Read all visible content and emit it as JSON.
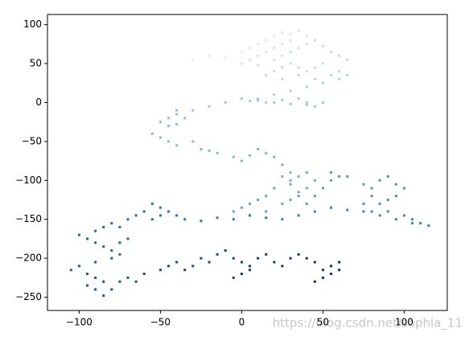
{
  "chart_data": {
    "type": "scatter",
    "colormap": "Blues",
    "xlim": [
      -119.5,
      126.5
    ],
    "ylim": [
      -267,
      113
    ],
    "xticks": [
      {
        "value": -100,
        "label": "−100"
      },
      {
        "value": -50,
        "label": "−50"
      },
      0,
      50,
      100
    ],
    "yticks": [
      100,
      50,
      0,
      {
        "value": -50,
        "label": "−50"
      },
      {
        "value": -100,
        "label": "−100"
      },
      {
        "value": -150,
        "label": "−150"
      },
      {
        "value": -200,
        "label": "−200"
      },
      {
        "value": -250,
        "label": "−250"
      }
    ],
    "watermark": "https://blog.csdn.net/sophia_11",
    "points": [
      [
        -30,
        55
      ],
      [
        -20,
        60
      ],
      [
        -10,
        58
      ],
      [
        0,
        65
      ],
      [
        5,
        70
      ],
      [
        10,
        75
      ],
      [
        15,
        80
      ],
      [
        20,
        85
      ],
      [
        25,
        90
      ],
      [
        30,
        88
      ],
      [
        35,
        92
      ],
      [
        40,
        85
      ],
      [
        30,
        80
      ],
      [
        25,
        75
      ],
      [
        20,
        70
      ],
      [
        15,
        65
      ],
      [
        10,
        60
      ],
      [
        5,
        55
      ],
      [
        0,
        50
      ],
      [
        10,
        48
      ],
      [
        20,
        55
      ],
      [
        25,
        60
      ],
      [
        30,
        65
      ],
      [
        35,
        70
      ],
      [
        40,
        75
      ],
      [
        45,
        80
      ],
      [
        50,
        72
      ],
      [
        55,
        65
      ],
      [
        60,
        60
      ],
      [
        65,
        55
      ],
      [
        50,
        50
      ],
      [
        45,
        45
      ],
      [
        40,
        40
      ],
      [
        35,
        45
      ],
      [
        30,
        50
      ],
      [
        25,
        45
      ],
      [
        20,
        40
      ],
      [
        15,
        35
      ],
      [
        25,
        30
      ],
      [
        35,
        35
      ],
      [
        45,
        30
      ],
      [
        55,
        35
      ],
      [
        60,
        40
      ],
      [
        65,
        35
      ],
      [
        60,
        30
      ],
      [
        50,
        25
      ],
      [
        40,
        20
      ],
      [
        30,
        15
      ],
      [
        20,
        10
      ],
      [
        10,
        5
      ],
      [
        5,
        2
      ],
      [
        15,
        0
      ],
      [
        25,
        3
      ],
      [
        35,
        5
      ],
      [
        40,
        0
      ],
      [
        45,
        -5
      ],
      [
        50,
        0
      ],
      [
        40,
        -3
      ],
      [
        30,
        -2
      ],
      [
        20,
        0
      ],
      [
        10,
        3
      ],
      [
        0,
        5
      ],
      [
        -10,
        0
      ],
      [
        -20,
        -5
      ],
      [
        -30,
        -10
      ],
      [
        -40,
        -15
      ],
      [
        -45,
        -20
      ],
      [
        -50,
        -25
      ],
      [
        -45,
        -30
      ],
      [
        -40,
        -28
      ],
      [
        -35,
        -20
      ],
      [
        -40,
        -10
      ],
      [
        -55,
        -40
      ],
      [
        -50,
        -45
      ],
      [
        -45,
        -50
      ],
      [
        -40,
        -55
      ],
      [
        -30,
        -50
      ],
      [
        -25,
        -60
      ],
      [
        -20,
        -62
      ],
      [
        -15,
        -65
      ],
      [
        -5,
        -70
      ],
      [
        0,
        -75
      ],
      [
        5,
        -68
      ],
      [
        10,
        -60
      ],
      [
        15,
        -65
      ],
      [
        20,
        -70
      ],
      [
        25,
        -80
      ],
      [
        30,
        -90
      ],
      [
        25,
        -95
      ],
      [
        30,
        -100
      ],
      [
        35,
        -95
      ],
      [
        40,
        -90
      ],
      [
        45,
        -100
      ],
      [
        40,
        -110
      ],
      [
        35,
        -115
      ],
      [
        30,
        -105
      ],
      [
        20,
        -110
      ],
      [
        15,
        -120
      ],
      [
        10,
        -125
      ],
      [
        5,
        -130
      ],
      [
        0,
        -135
      ],
      [
        -5,
        -140
      ],
      [
        5,
        -145
      ],
      [
        15,
        -140
      ],
      [
        25,
        -130
      ],
      [
        30,
        -125
      ],
      [
        35,
        -120
      ],
      [
        40,
        -130
      ],
      [
        45,
        -120
      ],
      [
        50,
        -110
      ],
      [
        55,
        -100
      ],
      [
        60,
        -95
      ],
      [
        55,
        -90
      ],
      [
        65,
        -95
      ],
      [
        75,
        -105
      ],
      [
        80,
        -110
      ],
      [
        85,
        -100
      ],
      [
        90,
        -95
      ],
      [
        95,
        -105
      ],
      [
        100,
        -110
      ],
      [
        95,
        -120
      ],
      [
        90,
        -125
      ],
      [
        85,
        -130
      ],
      [
        80,
        -120
      ],
      [
        75,
        -130
      ],
      [
        80,
        -140
      ],
      [
        90,
        -140
      ],
      [
        100,
        -145
      ],
      [
        105,
        -150
      ],
      [
        110,
        -155
      ],
      [
        115,
        -158
      ],
      [
        105,
        -155
      ],
      [
        95,
        -150
      ],
      [
        85,
        -145
      ],
      [
        75,
        -140
      ],
      [
        65,
        -138
      ],
      [
        55,
        -135
      ],
      [
        45,
        -140
      ],
      [
        35,
        -145
      ],
      [
        25,
        -150
      ],
      [
        15,
        -148
      ],
      [
        5,
        -145
      ],
      [
        -5,
        -150
      ],
      [
        -15,
        -148
      ],
      [
        -25,
        -152
      ],
      [
        -35,
        -150
      ],
      [
        -40,
        -145
      ],
      [
        -45,
        -140
      ],
      [
        -50,
        -135
      ],
      [
        -55,
        -130
      ],
      [
        -50,
        -145
      ],
      [
        -55,
        -150
      ],
      [
        -60,
        -140
      ],
      [
        -65,
        -145
      ],
      [
        -70,
        -150
      ],
      [
        -75,
        -160
      ],
      [
        -80,
        -155
      ],
      [
        -85,
        -160
      ],
      [
        -90,
        -165
      ],
      [
        -100,
        -170
      ],
      [
        -95,
        -175
      ],
      [
        -90,
        -180
      ],
      [
        -85,
        -185
      ],
      [
        -80,
        -190
      ],
      [
        -75,
        -180
      ],
      [
        -70,
        -175
      ],
      [
        -75,
        -195
      ],
      [
        -80,
        -200
      ],
      [
        -90,
        -205
      ],
      [
        -100,
        -210
      ],
      [
        -105,
        -215
      ],
      [
        -95,
        -220
      ],
      [
        -90,
        -225
      ],
      [
        -85,
        -230
      ],
      [
        -95,
        -235
      ],
      [
        -90,
        -240
      ],
      [
        -85,
        -248
      ],
      [
        -80,
        -240
      ],
      [
        -75,
        -230
      ],
      [
        -70,
        -225
      ],
      [
        -65,
        -230
      ],
      [
        -60,
        -220
      ],
      [
        -50,
        -215
      ],
      [
        -45,
        -210
      ],
      [
        -40,
        -205
      ],
      [
        -35,
        -215
      ],
      [
        -30,
        -210
      ],
      [
        -25,
        -200
      ],
      [
        -20,
        -205
      ],
      [
        -15,
        -195
      ],
      [
        -10,
        -190
      ],
      [
        -5,
        -200
      ],
      [
        0,
        -205
      ],
      [
        5,
        -210
      ],
      [
        0,
        -220
      ],
      [
        -5,
        -225
      ],
      [
        5,
        -215
      ],
      [
        10,
        -200
      ],
      [
        15,
        -195
      ],
      [
        20,
        -205
      ],
      [
        25,
        -210
      ],
      [
        30,
        -200
      ],
      [
        35,
        -195
      ],
      [
        40,
        -200
      ],
      [
        45,
        -205
      ],
      [
        50,
        -215
      ],
      [
        55,
        -220
      ],
      [
        60,
        -215
      ],
      [
        50,
        -225
      ],
      [
        45,
        -230
      ],
      [
        55,
        -210
      ],
      [
        60,
        -205
      ]
    ]
  }
}
